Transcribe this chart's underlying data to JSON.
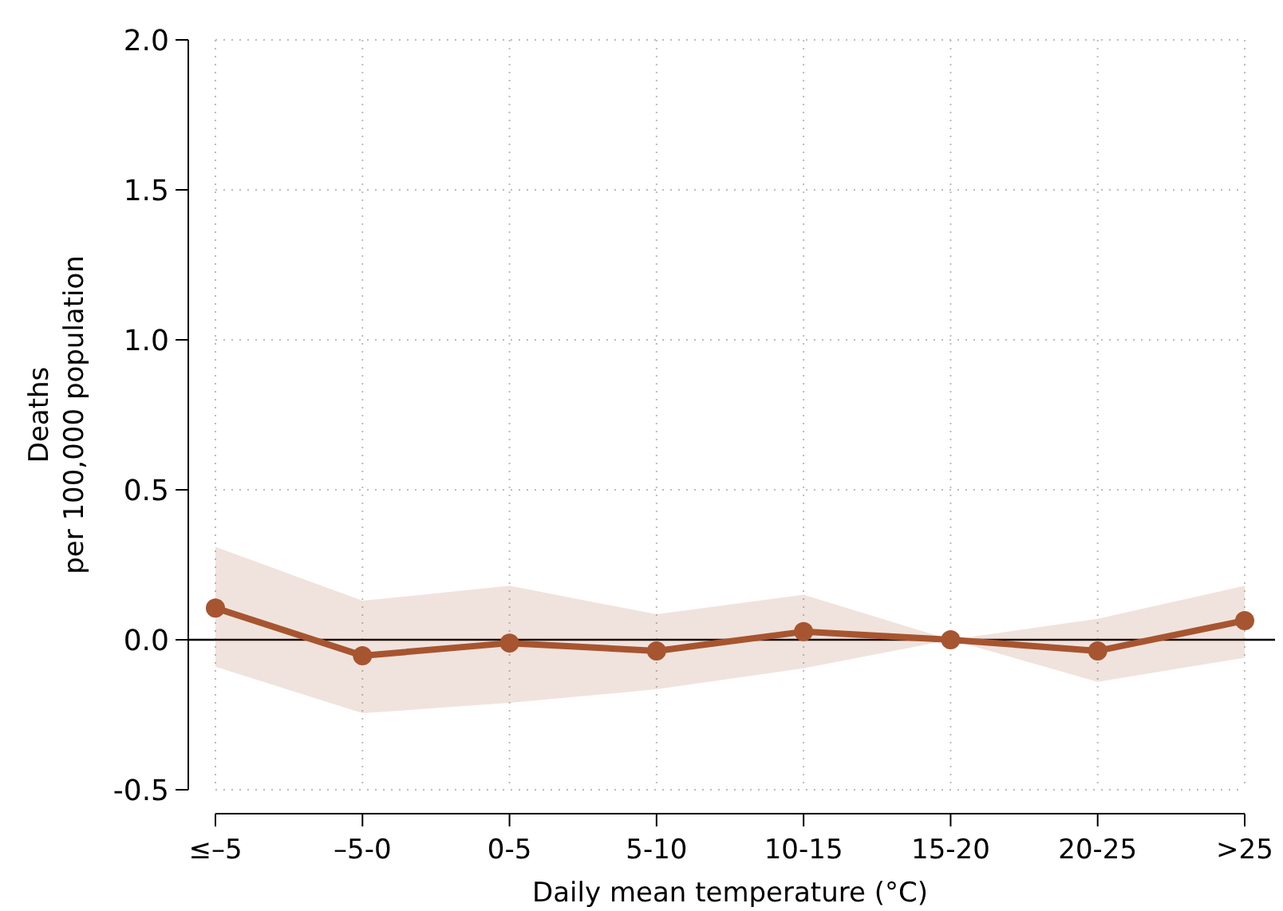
{
  "chart_data": {
    "type": "line",
    "xlabel": "Daily mean temperature (°C)",
    "ylabel": "Deaths\nper 100,000 population",
    "categories": [
      "≤–5",
      "–5-0",
      "0-5",
      "5-10",
      "10-15",
      "15-20",
      "20-25",
      ">25"
    ],
    "series": [
      {
        "color": "#a65530",
        "values": [
          0.106,
          -0.053,
          -0.011,
          -0.037,
          0.027,
          0,
          -0.037,
          0.064
        ],
        "lower": [
          -0.09,
          -0.245,
          -0.21,
          -0.165,
          -0.095,
          0,
          -0.14,
          -0.06
        ],
        "upper": [
          0.31,
          0.13,
          0.18,
          0.085,
          0.15,
          0,
          0.07,
          0.18
        ]
      }
    ],
    "ylim": [
      -0.5,
      2.0
    ],
    "yticks": [
      -0.5,
      {
        "value": 0,
        "label": "0.0"
      },
      0.5,
      {
        "value": 1,
        "label": "1.0"
      },
      1.5,
      {
        "value": 2,
        "label": "2.0"
      }
    ],
    "ref_lines": [
      {
        "axis": "y",
        "value": 0,
        "color": "#000000"
      }
    ],
    "grid": true,
    "marker": "circle",
    "line_style": "solid"
  }
}
